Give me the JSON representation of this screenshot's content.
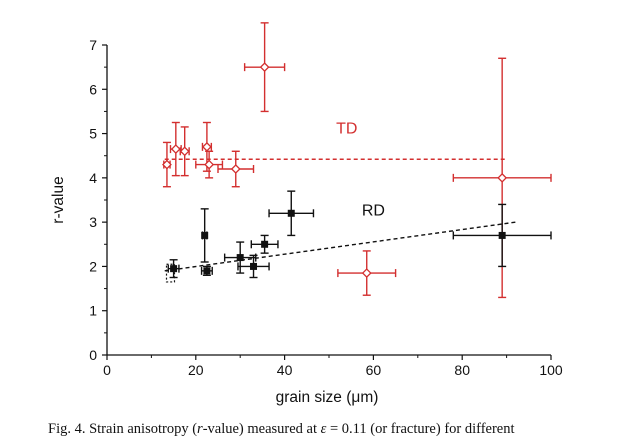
{
  "chart_data": {
    "type": "scatter",
    "xlabel": "grain size (μm)",
    "ylabel": "r-value",
    "xlim": [
      0,
      100
    ],
    "ylim": [
      0,
      7
    ],
    "xticks": [
      0,
      20,
      40,
      60,
      80,
      100
    ],
    "yticks": [
      0,
      1,
      2,
      3,
      4,
      5,
      6,
      7
    ],
    "grid": false,
    "legend": "none",
    "annotations": [
      {
        "text": "TD",
        "x": 54,
        "y": 5.0,
        "color": "#d32f2f"
      },
      {
        "text": "RD",
        "x": 60,
        "y": 3.15,
        "color": "#111111"
      }
    ],
    "series": [
      {
        "key": "TD",
        "color": "#d32f2f",
        "marker": "open-diamond",
        "points": [
          {
            "x": 13.5,
            "y": 4.3,
            "xerr": 0.7,
            "yerr": 0.5
          },
          {
            "x": 15.5,
            "y": 4.65,
            "xerr": 1.2,
            "yerr": 0.6
          },
          {
            "x": 17.5,
            "y": 4.6,
            "xerr": 1.0,
            "yerr": 0.55
          },
          {
            "x": 22.5,
            "y": 4.7,
            "xerr": 1.0,
            "yerr": 0.55
          },
          {
            "x": 23.0,
            "y": 4.3,
            "xerr": 3.0,
            "yerr": 0.3
          },
          {
            "x": 29.0,
            "y": 4.2,
            "xerr": 4.0,
            "yerr": 0.4
          },
          {
            "x": 35.5,
            "y": 6.5,
            "xerr": 4.5,
            "yerr": 1.0
          },
          {
            "x": 58.5,
            "y": 1.85,
            "xerr": 6.5,
            "yerr": 0.5
          },
          {
            "x": 89.0,
            "y": 4.0,
            "xerr": 11.0,
            "yerr": 2.7
          }
        ]
      },
      {
        "key": "RD",
        "color": "#111111",
        "marker": "filled-square",
        "points": [
          {
            "x": 15.0,
            "y": 1.95,
            "xerr": 1.2,
            "yerr": 0.2
          },
          {
            "x": 22.5,
            "y": 1.9,
            "xerr": 1.2,
            "yerr": 0.1
          },
          {
            "x": 22.0,
            "y": 2.7,
            "xerr": 0.5,
            "yerr": 0.6
          },
          {
            "x": 30.0,
            "y": 2.2,
            "xerr": 3.5,
            "yerr": 0.35
          },
          {
            "x": 33.0,
            "y": 2.0,
            "xerr": 3.5,
            "yerr": 0.25
          },
          {
            "x": 35.5,
            "y": 2.5,
            "xerr": 3.0,
            "yerr": 0.2
          },
          {
            "x": 41.5,
            "y": 3.2,
            "xerr": 5.0,
            "yerr": 0.5
          },
          {
            "x": 89.0,
            "y": 2.7,
            "xerr": 11.0,
            "yerr": 0.7
          }
        ],
        "extra_marks": [
          {
            "x": 14.3,
            "y": 1.85,
            "xerr": 0.9,
            "yerr": 0.2,
            "style": "dashed-box"
          }
        ]
      }
    ],
    "fit_lines": [
      {
        "key": "TD-fit",
        "color": "#d32f2f",
        "dash": "dashed",
        "x": [
          13,
          90
        ],
        "y": [
          4.42,
          4.42
        ]
      },
      {
        "key": "RD-fit",
        "color": "#111111",
        "dash": "dashed",
        "x": [
          13,
          92
        ],
        "y": [
          1.9,
          3.0
        ]
      }
    ]
  },
  "caption": {
    "prefix": "Fig. 4.  Strain anisotropy (",
    "rvar": "r",
    "mid": "-value) measured at ",
    "eps": "ε",
    "eq": " = 0.11 (or fracture) for different"
  }
}
